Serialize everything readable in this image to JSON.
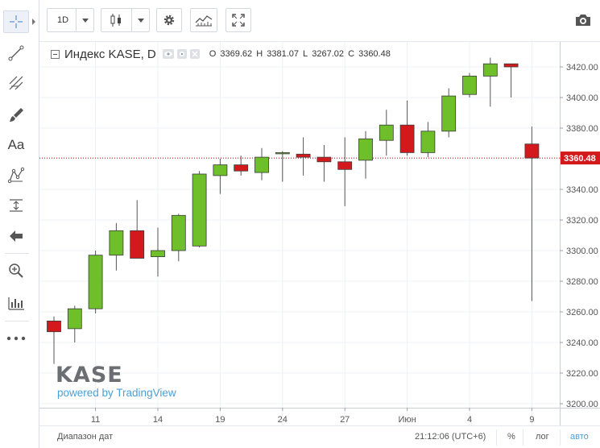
{
  "toolbar": {
    "interval": "1D",
    "screenshot_icon": "camera-icon"
  },
  "left_tools": [
    {
      "name": "crosshair",
      "icon": "crosshair-icon",
      "active": true
    },
    {
      "name": "trend-line",
      "icon": "trend-line-icon"
    },
    {
      "name": "fib-tools",
      "icon": "fib-icon"
    },
    {
      "name": "brush",
      "icon": "brush-icon"
    },
    {
      "name": "text",
      "icon": "text-icon",
      "label": "Aa"
    },
    {
      "name": "patterns",
      "icon": "pattern-icon"
    },
    {
      "name": "measure",
      "icon": "measure-icon"
    },
    {
      "name": "arrow",
      "icon": "arrow-left-icon"
    },
    {
      "name": "zoom",
      "icon": "zoom-icon"
    },
    {
      "name": "indicators",
      "icon": "bars-icon"
    },
    {
      "name": "more",
      "icon": "dots-icon"
    }
  ],
  "legend": {
    "title": "Индекс KASE, D",
    "o_label": "O",
    "o": "3369.62",
    "h_label": "H",
    "h": "3381.07",
    "l_label": "L",
    "l": "3267.02",
    "c_label": "C",
    "c": "3360.48"
  },
  "watermark": {
    "logo": "KASE",
    "powered": "powered by TradingView"
  },
  "bottom": {
    "date_range": "Диапазон дат",
    "time": "21:12:06 (UTC+6)",
    "percent": "%",
    "log": "лог",
    "auto": "авто"
  },
  "colors": {
    "up": "#6fbf2a",
    "down": "#d4191d",
    "grid": "#edf0f3",
    "price_line": "#c00000",
    "link": "#4b9fd5"
  },
  "chart_data": {
    "type": "candlestick",
    "title": "Индекс KASE, D",
    "ylim": [
      3195,
      3430
    ],
    "yticks": [
      "3420.00",
      "3400.00",
      "3380.00",
      "3360.00",
      "3340.00",
      "3320.00",
      "3300.00",
      "3280.00",
      "3260.00",
      "3240.00",
      "3220.00",
      "3200.00"
    ],
    "ytick_values": [
      3420,
      3400,
      3380,
      3360,
      3340,
      3320,
      3300,
      3280,
      3260,
      3240,
      3220,
      3200
    ],
    "xticks": [
      {
        "label": "11",
        "index": 2
      },
      {
        "label": "14",
        "index": 5
      },
      {
        "label": "19",
        "index": 8
      },
      {
        "label": "24",
        "index": 11
      },
      {
        "label": "27",
        "index": 14
      },
      {
        "label": "Июн",
        "index": 17
      },
      {
        "label": "4",
        "index": 20
      },
      {
        "label": "9",
        "index": 23
      }
    ],
    "last_price": "3360.48",
    "last_price_value": 3360.48,
    "candles": [
      {
        "o": 3254,
        "h": 3257,
        "l": 3226,
        "c": 3247
      },
      {
        "o": 3249,
        "h": 3264,
        "l": 3240,
        "c": 3262
      },
      {
        "o": 3262,
        "h": 3300,
        "l": 3259,
        "c": 3297
      },
      {
        "o": 3297,
        "h": 3318,
        "l": 3287,
        "c": 3313
      },
      {
        "o": 3313,
        "h": 3333,
        "l": 3296,
        "c": 3295
      },
      {
        "o": 3296,
        "h": 3315,
        "l": 3283,
        "c": 3300
      },
      {
        "o": 3300,
        "h": 3324,
        "l": 3293,
        "c": 3323
      },
      {
        "o": 3303,
        "h": 3352,
        "l": 3302,
        "c": 3350
      },
      {
        "o": 3349,
        "h": 3360,
        "l": 3337,
        "c": 3356
      },
      {
        "o": 3356,
        "h": 3362,
        "l": 3349,
        "c": 3352
      },
      {
        "o": 3351,
        "h": 3367,
        "l": 3346,
        "c": 3361
      },
      {
        "o": 3364,
        "h": 3365,
        "l": 3345,
        "c": 3364
      },
      {
        "o": 3363,
        "h": 3374,
        "l": 3349,
        "c": 3361
      },
      {
        "o": 3361,
        "h": 3369,
        "l": 3345,
        "c": 3358
      },
      {
        "o": 3358,
        "h": 3374,
        "l": 3329,
        "c": 3353
      },
      {
        "o": 3359,
        "h": 3378,
        "l": 3347,
        "c": 3373
      },
      {
        "o": 3372,
        "h": 3392,
        "l": 3362,
        "c": 3382
      },
      {
        "o": 3382,
        "h": 3398,
        "l": 3362,
        "c": 3364
      },
      {
        "o": 3364,
        "h": 3384,
        "l": 3361,
        "c": 3378
      },
      {
        "o": 3378,
        "h": 3406,
        "l": 3374,
        "c": 3401
      },
      {
        "o": 3402,
        "h": 3416,
        "l": 3400,
        "c": 3414
      },
      {
        "o": 3414,
        "h": 3426,
        "l": 3394,
        "c": 3422
      },
      {
        "o": 3422,
        "h": 3422,
        "l": 3400,
        "c": 3420
      },
      {
        "o": 3369.62,
        "h": 3381.07,
        "l": 3267.02,
        "c": 3360.48
      }
    ]
  }
}
